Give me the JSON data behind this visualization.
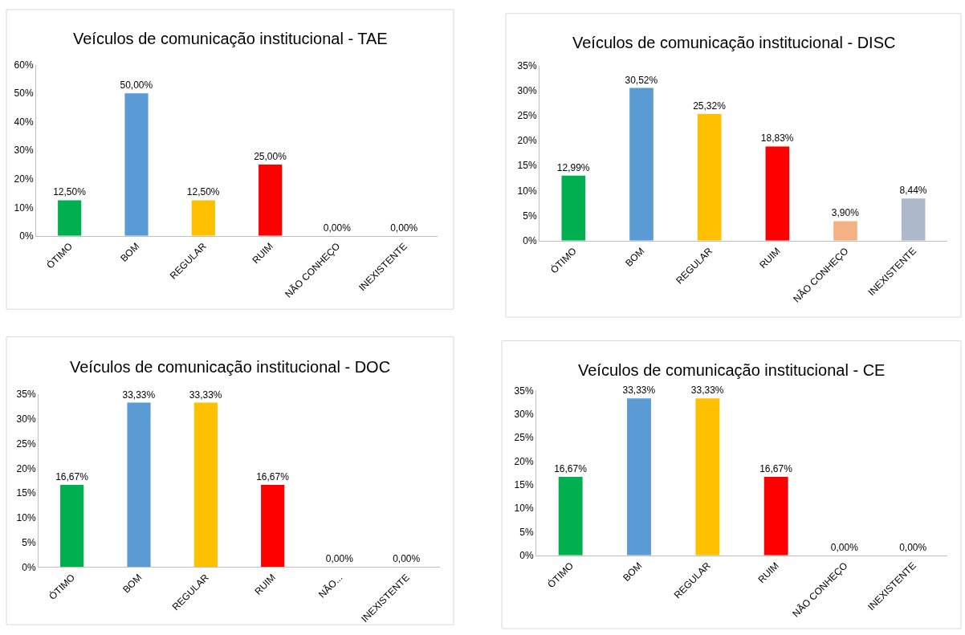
{
  "chart_data": [
    {
      "type": "bar",
      "title": "Veículos de comunicação institucional - TAE",
      "categories": [
        "ÓTIMO",
        "BOM",
        "REGULAR",
        "RUIM",
        "NÃO CONHEÇO",
        "INEXISTENTE"
      ],
      "values": [
        12.5,
        50,
        12.5,
        25,
        0,
        0
      ],
      "value_labels": [
        "12,50%",
        "50,00%",
        "12,50%",
        "25,00%",
        "0,00%",
        "0,00%"
      ],
      "colors": [
        "#00b050",
        "#5b9bd5",
        "#ffc000",
        "#ff0000",
        "#f4b183",
        "#adb9ca"
      ],
      "ylim": [
        0,
        60
      ],
      "yticks": [
        {
          "value": 0,
          "label": "0%"
        },
        {
          "value": 10,
          "label": "10%"
        },
        {
          "value": 20,
          "label": "20%"
        },
        {
          "value": 30,
          "label": "30%"
        },
        {
          "value": 40,
          "label": "40%"
        },
        {
          "value": 50,
          "label": "50%"
        },
        {
          "value": 60,
          "label": "60%"
        }
      ]
    },
    {
      "type": "bar",
      "title": "Veículos de comunicação institucional - DISC",
      "categories": [
        "ÓTIMO",
        "BOM",
        "REGULAR",
        "RUIM",
        "NÃO CONHEÇO",
        "INEXISTENTE"
      ],
      "values": [
        12.99,
        30.52,
        25.32,
        18.83,
        3.9,
        8.44
      ],
      "value_labels": [
        "12,99%",
        "30,52%",
        "25,32%",
        "18,83%",
        "3,90%",
        "8,44%"
      ],
      "colors": [
        "#00b050",
        "#5b9bd5",
        "#ffc000",
        "#ff0000",
        "#f4b183",
        "#adb9ca"
      ],
      "ylim": [
        0,
        35
      ],
      "yticks": [
        {
          "value": 0,
          "label": "0%"
        },
        {
          "value": 5,
          "label": "5%"
        },
        {
          "value": 10,
          "label": "10%"
        },
        {
          "value": 15,
          "label": "15%"
        },
        {
          "value": 20,
          "label": "20%"
        },
        {
          "value": 25,
          "label": "25%"
        },
        {
          "value": 30,
          "label": "30%"
        },
        {
          "value": 35,
          "label": "35%"
        }
      ]
    },
    {
      "type": "bar",
      "title": "Veículos de comunicação institucional - DOC",
      "categories": [
        "ÓTIMO",
        "BOM",
        "REGULAR",
        "RUIM",
        "NÃO...",
        "INEXISTENTE"
      ],
      "values": [
        16.67,
        33.33,
        33.33,
        16.67,
        0,
        0
      ],
      "value_labels": [
        "16,67%",
        "33,33%",
        "33,33%",
        "16,67%",
        "0,00%",
        "0,00%"
      ],
      "colors": [
        "#00b050",
        "#5b9bd5",
        "#ffc000",
        "#ff0000",
        "#f4b183",
        "#adb9ca"
      ],
      "ylim": [
        0,
        35
      ],
      "yticks": [
        {
          "value": 0,
          "label": "0%"
        },
        {
          "value": 5,
          "label": "5%"
        },
        {
          "value": 10,
          "label": "10%"
        },
        {
          "value": 15,
          "label": "15%"
        },
        {
          "value": 20,
          "label": "20%"
        },
        {
          "value": 25,
          "label": "25%"
        },
        {
          "value": 30,
          "label": "30%"
        },
        {
          "value": 35,
          "label": "35%"
        }
      ]
    },
    {
      "type": "bar",
      "title": "Veículos de comunicação institucional - CE",
      "categories": [
        "ÓTIMO",
        "BOM",
        "REGULAR",
        "RUIM",
        "NÃO CONHEÇO",
        "INEXISTENTE"
      ],
      "values": [
        16.67,
        33.33,
        33.33,
        16.67,
        0,
        0
      ],
      "value_labels": [
        "16,67%",
        "33,33%",
        "33,33%",
        "16,67%",
        "0,00%",
        "0,00%"
      ],
      "colors": [
        "#00b050",
        "#5b9bd5",
        "#ffc000",
        "#ff0000",
        "#f4b183",
        "#adb9ca"
      ],
      "ylim": [
        0,
        35
      ],
      "yticks": [
        {
          "value": 0,
          "label": "0%"
        },
        {
          "value": 5,
          "label": "5%"
        },
        {
          "value": 10,
          "label": "10%"
        },
        {
          "value": 15,
          "label": "15%"
        },
        {
          "value": 20,
          "label": "20%"
        },
        {
          "value": 25,
          "label": "25%"
        },
        {
          "value": 30,
          "label": "30%"
        },
        {
          "value": 35,
          "label": "35%"
        }
      ]
    }
  ]
}
